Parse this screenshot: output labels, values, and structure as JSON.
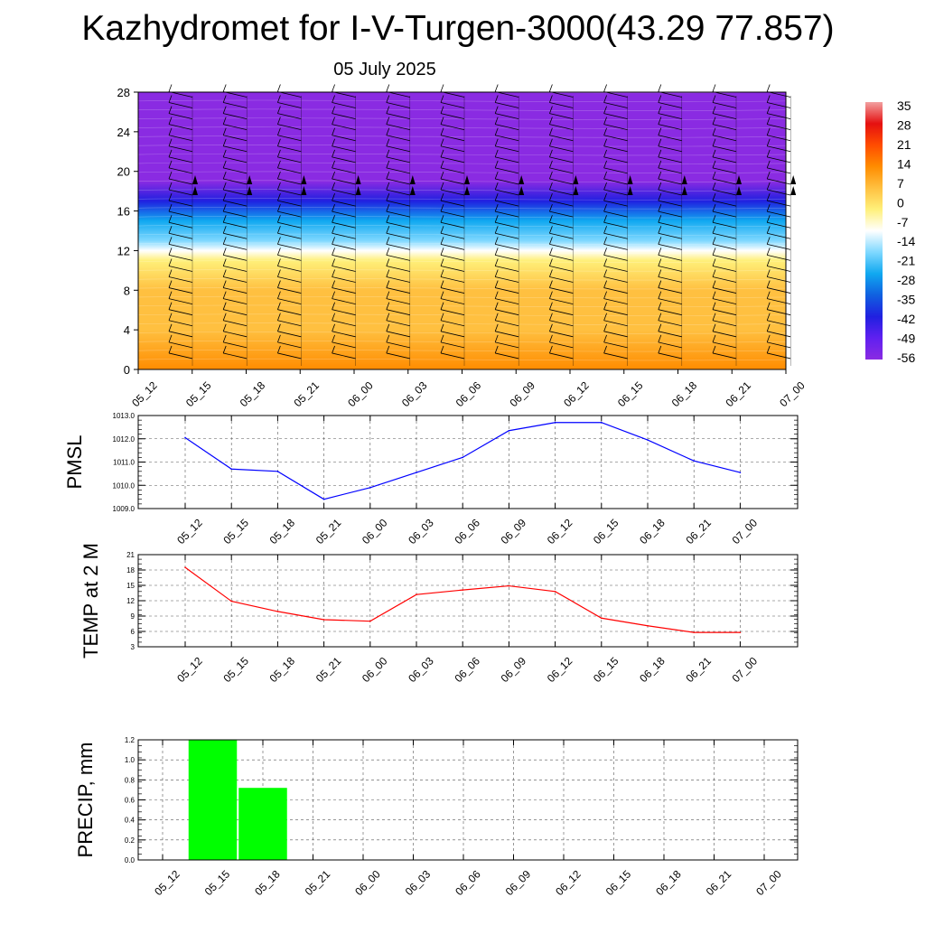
{
  "title": "Kazhydromet for I-V-Turgen-3000(43.29 77.857)",
  "subtitle": "05 July 2025",
  "chart_data": [
    {
      "type": "heatmap",
      "name": "cross-section",
      "x_ticks": [
        "05_12",
        "05_15",
        "05_18",
        "05_21",
        "06_00",
        "06_03",
        "06_06",
        "06_09",
        "06_12",
        "06_15",
        "06_18",
        "06_21",
        "07_00"
      ],
      "y_ticks": [
        0,
        4,
        8,
        12,
        16,
        20,
        24,
        28
      ],
      "ylim": [
        0,
        28
      ],
      "colorbar_labels": [
        "35",
        "28",
        "21",
        "14",
        "7",
        "0",
        "-7",
        "-14",
        "-21",
        "-28",
        "-35",
        "-42",
        "-49",
        "-56"
      ],
      "vertical_profile": [
        {
          "y": 0,
          "value": 14
        },
        {
          "y": 4,
          "value": 7
        },
        {
          "y": 8,
          "value": 3
        },
        {
          "y": 11,
          "value": -2
        },
        {
          "y": 12,
          "value": -10
        },
        {
          "y": 13,
          "value": -18
        },
        {
          "y": 15,
          "value": -28
        },
        {
          "y": 17,
          "value": -40
        },
        {
          "y": 19,
          "value": -55
        },
        {
          "y": 20,
          "value": -60
        },
        {
          "y": 22,
          "value": -57
        },
        {
          "y": 28,
          "value": -56
        }
      ],
      "colorbar_colors": [
        "#f2a0a0",
        "#e51010",
        "#ff4c00",
        "#ff8c00",
        "#ffc040",
        "#fff07a",
        "#ffffff",
        "#7fd8ff",
        "#10a8f0",
        "#1060e0",
        "#2020e0",
        "#6020f0",
        "#8a2be2"
      ]
    },
    {
      "type": "line",
      "ylabel": "PMSL",
      "color": "#0000ff",
      "ylim": [
        1009.0,
        1013.0
      ],
      "y_ticks": [
        "1009.0",
        "1010.0",
        "1011.0",
        "1012.0",
        "1013.0"
      ],
      "categories": [
        "05_12",
        "05_15",
        "05_18",
        "05_21",
        "06_00",
        "06_03",
        "06_06",
        "06_09",
        "06_12",
        "06_15",
        "06_18",
        "06_21",
        "07_00"
      ],
      "values": [
        1012.05,
        1010.7,
        1010.6,
        1009.4,
        1009.9,
        1010.55,
        1011.2,
        1012.35,
        1012.7,
        1012.7,
        1011.95,
        1011.05,
        1010.55
      ]
    },
    {
      "type": "line",
      "ylabel": "TEMP at 2 M",
      "color": "#ff0000",
      "ylim": [
        3,
        21
      ],
      "y_ticks": [
        "3",
        "6",
        "9",
        "12",
        "15",
        "18",
        "21"
      ],
      "categories": [
        "05_12",
        "05_15",
        "05_18",
        "05_21",
        "06_00",
        "06_03",
        "06_06",
        "06_09",
        "06_12",
        "06_15",
        "06_18",
        "06_21",
        "07_00"
      ],
      "values": [
        18.5,
        11.9,
        9.9,
        8.3,
        8.0,
        13.2,
        14.1,
        14.9,
        13.8,
        8.6,
        7.1,
        5.8,
        5.8
      ]
    },
    {
      "type": "bar",
      "ylabel": "PRECIP, mm",
      "color": "#00ff00",
      "ylim": [
        0,
        1.2
      ],
      "y_ticks": [
        "0.0",
        "0.2",
        "0.4",
        "0.6",
        "0.8",
        "1.0",
        "1.2"
      ],
      "categories": [
        "05_12",
        "05_15",
        "05_18",
        "05_21",
        "06_00",
        "06_03",
        "06_06",
        "06_09",
        "06_12",
        "06_15",
        "06_18",
        "06_21",
        "07_00"
      ],
      "values": [
        0,
        1.2,
        0.72,
        0,
        0,
        0,
        0,
        0,
        0,
        0,
        0,
        0,
        0
      ]
    }
  ]
}
